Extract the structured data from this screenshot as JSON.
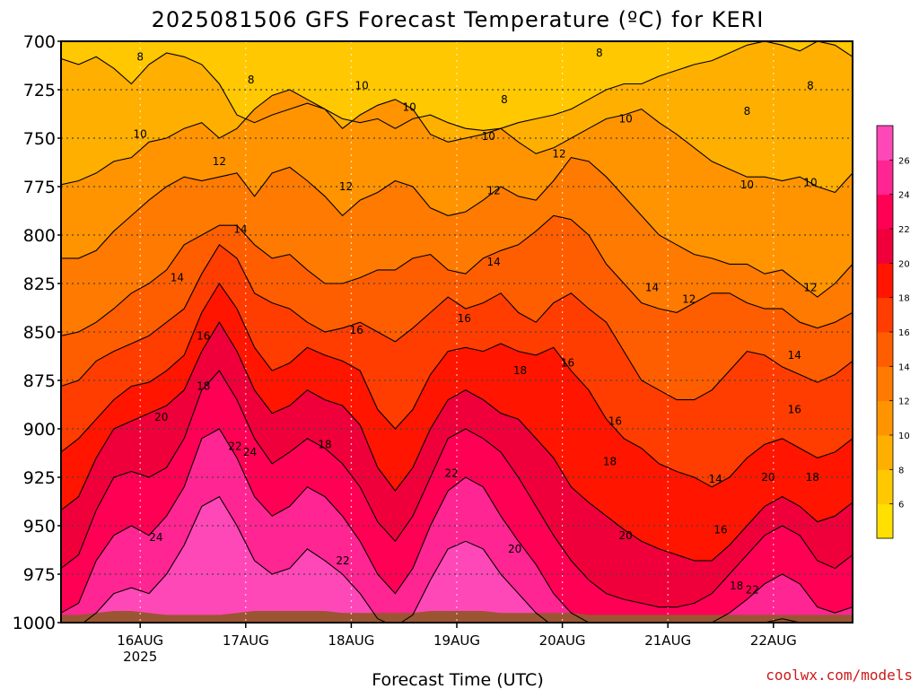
{
  "chart_data": {
    "type": "contour",
    "title": "2025081506 GFS Forecast Temperature (ºC) for KERI",
    "xlabel": "Forecast Time (UTC)",
    "credit": "coolwx.com/models",
    "x_axis": {
      "ticks": [
        {
          "label": "16AUG",
          "sublabel": "2025",
          "day": 1.0
        },
        {
          "label": "17AUG",
          "sublabel": "",
          "day": 2.0
        },
        {
          "label": "18AUG",
          "sublabel": "",
          "day": 3.0
        },
        {
          "label": "19AUG",
          "sublabel": "",
          "day": 4.0
        },
        {
          "label": "20AUG",
          "sublabel": "",
          "day": 5.0
        },
        {
          "label": "21AUG",
          "sublabel": "",
          "day": 6.0
        },
        {
          "label": "22AUG",
          "sublabel": "",
          "day": 7.0
        }
      ],
      "range_days": [
        0.25,
        7.75
      ]
    },
    "y_axis": {
      "label": "",
      "ticks": [
        "700",
        "725",
        "750",
        "775",
        "800",
        "825",
        "850",
        "875",
        "900",
        "925",
        "950",
        "975",
        "1000"
      ],
      "range_hpa": [
        700,
        1000
      ],
      "reversed": true
    },
    "grid": true,
    "colorbar": {
      "ticks": [
        "6",
        "8",
        "10",
        "12",
        "14",
        "16",
        "18",
        "20",
        "22",
        "24",
        "26"
      ],
      "levels": [
        4,
        6,
        8,
        10,
        12,
        14,
        16,
        18,
        20,
        22,
        24,
        26,
        28
      ],
      "colors": [
        "#ffe000",
        "#ffc800",
        "#ffaf00",
        "#ff9400",
        "#ff7a00",
        "#ff5e00",
        "#ff3d00",
        "#ff1500",
        "#f0003a",
        "#ff0055",
        "#ff2592",
        "#ff48b8"
      ],
      "placement": "right"
    },
    "surface_color": "#9b5533",
    "isotherms": [
      {
        "value": 8,
        "hpa": [
          709,
          712,
          708,
          714,
          722,
          712,
          706,
          708,
          712,
          722,
          738,
          742,
          738,
          735,
          732,
          735,
          740,
          742,
          740,
          745,
          740,
          738,
          742,
          745,
          746,
          745,
          742,
          740,
          738,
          735,
          730,
          725,
          722,
          722,
          718,
          715,
          712,
          710,
          706,
          702,
          700,
          702,
          705,
          700,
          702,
          708
        ]
      },
      {
        "value": 10,
        "hpa": [
          774,
          772,
          768,
          762,
          760,
          752,
          750,
          745,
          742,
          750,
          745,
          735,
          728,
          725,
          730,
          735,
          745,
          738,
          733,
          730,
          735,
          748,
          752,
          750,
          748,
          745,
          752,
          758,
          755,
          750,
          745,
          740,
          738,
          735,
          742,
          748,
          755,
          762,
          766,
          770,
          770,
          772,
          770,
          775,
          778,
          768
        ]
      },
      {
        "value": 12,
        "hpa": [
          812,
          812,
          808,
          798,
          790,
          782,
          775,
          770,
          772,
          770,
          768,
          780,
          768,
          765,
          772,
          780,
          790,
          782,
          778,
          772,
          775,
          786,
          790,
          788,
          782,
          775,
          780,
          782,
          772,
          760,
          762,
          770,
          780,
          790,
          800,
          805,
          810,
          812,
          815,
          815,
          820,
          818,
          825,
          832,
          825,
          815
        ]
      },
      {
        "value": 14,
        "hpa": [
          852,
          850,
          845,
          838,
          830,
          825,
          818,
          805,
          800,
          795,
          795,
          805,
          812,
          810,
          818,
          825,
          825,
          822,
          818,
          818,
          812,
          810,
          818,
          820,
          812,
          808,
          805,
          798,
          790,
          792,
          800,
          815,
          825,
          835,
          838,
          840,
          835,
          830,
          830,
          835,
          838,
          838,
          845,
          848,
          845,
          840
        ]
      },
      {
        "value": 16,
        "hpa": [
          878,
          875,
          865,
          860,
          856,
          852,
          845,
          838,
          820,
          805,
          812,
          830,
          835,
          838,
          845,
          850,
          848,
          845,
          850,
          855,
          848,
          840,
          832,
          838,
          835,
          830,
          840,
          845,
          835,
          830,
          838,
          845,
          860,
          875,
          880,
          885,
          885,
          880,
          870,
          860,
          862,
          868,
          872,
          876,
          872,
          865
        ]
      },
      {
        "value": 18,
        "hpa": [
          912,
          905,
          895,
          885,
          878,
          876,
          870,
          862,
          840,
          825,
          838,
          858,
          870,
          866,
          858,
          862,
          865,
          870,
          890,
          900,
          890,
          872,
          860,
          858,
          860,
          856,
          860,
          862,
          858,
          870,
          880,
          895,
          905,
          910,
          918,
          922,
          925,
          930,
          925,
          915,
          908,
          905,
          910,
          915,
          912,
          905
        ]
      },
      {
        "value": 20,
        "hpa": [
          942,
          935,
          915,
          900,
          896,
          892,
          888,
          880,
          860,
          845,
          860,
          880,
          892,
          888,
          880,
          885,
          888,
          898,
          920,
          932,
          920,
          900,
          885,
          880,
          885,
          892,
          895,
          905,
          915,
          930,
          938,
          945,
          952,
          958,
          962,
          965,
          968,
          968,
          960,
          950,
          940,
          935,
          940,
          948,
          945,
          938
        ]
      },
      {
        "value": 22,
        "hpa": [
          972,
          965,
          942,
          925,
          922,
          925,
          920,
          905,
          880,
          870,
          885,
          905,
          918,
          912,
          905,
          910,
          918,
          930,
          948,
          958,
          945,
          925,
          905,
          900,
          905,
          912,
          925,
          940,
          955,
          968,
          978,
          985,
          988,
          990,
          992,
          992,
          990,
          985,
          975,
          965,
          955,
          950,
          955,
          968,
          972,
          965
        ]
      },
      {
        "value": 24,
        "hpa": [
          995,
          990,
          968,
          955,
          950,
          955,
          945,
          930,
          905,
          900,
          915,
          935,
          945,
          940,
          930,
          935,
          945,
          958,
          975,
          985,
          972,
          950,
          932,
          925,
          930,
          945,
          958,
          970,
          985,
          995,
          1000,
          1002,
          1002,
          1002,
          1002,
          1002,
          1002,
          1000,
          995,
          988,
          980,
          975,
          980,
          992,
          995,
          992
        ]
      },
      {
        "value": 26,
        "hpa": [
          1002,
          1002,
          995,
          985,
          982,
          985,
          975,
          960,
          940,
          935,
          950,
          968,
          975,
          972,
          962,
          968,
          975,
          985,
          998,
          1002,
          996,
          978,
          962,
          958,
          962,
          975,
          985,
          995,
          1002,
          1002,
          1002,
          1002,
          1002,
          1002,
          1002,
          1002,
          1002,
          1002,
          1002,
          1002,
          1000,
          998,
          1000,
          1002,
          1002,
          1002
        ]
      }
    ],
    "contour_labels": [
      {
        "text": "8",
        "day": 1.0,
        "hpa": 708
      },
      {
        "text": "8",
        "day": 2.05,
        "hpa": 720
      },
      {
        "text": "8",
        "day": 4.45,
        "hpa": 730
      },
      {
        "text": "8",
        "day": 5.35,
        "hpa": 706
      },
      {
        "text": "8",
        "day": 6.75,
        "hpa": 736
      },
      {
        "text": "8",
        "day": 7.35,
        "hpa": 723
      },
      {
        "text": "10",
        "day": 1.0,
        "hpa": 748
      },
      {
        "text": "10",
        "day": 3.1,
        "hpa": 723
      },
      {
        "text": "10",
        "day": 3.55,
        "hpa": 734
      },
      {
        "text": "10",
        "day": 4.3,
        "hpa": 749
      },
      {
        "text": "10",
        "day": 5.6,
        "hpa": 740
      },
      {
        "text": "10",
        "day": 6.75,
        "hpa": 774
      },
      {
        "text": "10",
        "day": 7.35,
        "hpa": 773
      },
      {
        "text": "12",
        "day": 1.75,
        "hpa": 762
      },
      {
        "text": "12",
        "day": 2.95,
        "hpa": 775
      },
      {
        "text": "12",
        "day": 4.35,
        "hpa": 777
      },
      {
        "text": "12",
        "day": 4.97,
        "hpa": 758
      },
      {
        "text": "12",
        "day": 6.2,
        "hpa": 833
      },
      {
        "text": "12",
        "day": 7.35,
        "hpa": 827
      },
      {
        "text": "14",
        "day": 1.95,
        "hpa": 797
      },
      {
        "text": "14",
        "day": 1.35,
        "hpa": 822
      },
      {
        "text": "14",
        "day": 4.35,
        "hpa": 814
      },
      {
        "text": "14",
        "day": 5.85,
        "hpa": 827
      },
      {
        "text": "14",
        "day": 7.2,
        "hpa": 862
      },
      {
        "text": "14",
        "day": 6.45,
        "hpa": 926
      },
      {
        "text": "16",
        "day": 1.6,
        "hpa": 852
      },
      {
        "text": "16",
        "day": 3.05,
        "hpa": 849
      },
      {
        "text": "16",
        "day": 4.07,
        "hpa": 843
      },
      {
        "text": "16",
        "day": 5.05,
        "hpa": 866
      },
      {
        "text": "16",
        "day": 5.5,
        "hpa": 896
      },
      {
        "text": "16",
        "day": 7.2,
        "hpa": 890
      },
      {
        "text": "16",
        "day": 6.5,
        "hpa": 952
      },
      {
        "text": "18",
        "day": 1.6,
        "hpa": 878
      },
      {
        "text": "18",
        "day": 2.75,
        "hpa": 908
      },
      {
        "text": "18",
        "day": 4.6,
        "hpa": 870
      },
      {
        "text": "18",
        "day": 5.45,
        "hpa": 917
      },
      {
        "text": "18",
        "day": 6.65,
        "hpa": 981
      },
      {
        "text": "18",
        "day": 7.37,
        "hpa": 925
      },
      {
        "text": "20",
        "day": 1.2,
        "hpa": 894
      },
      {
        "text": "20",
        "day": 4.55,
        "hpa": 962
      },
      {
        "text": "20",
        "day": 5.6,
        "hpa": 955
      },
      {
        "text": "20",
        "day": 6.95,
        "hpa": 925
      },
      {
        "text": "22",
        "day": 1.9,
        "hpa": 909
      },
      {
        "text": "22",
        "day": 2.92,
        "hpa": 968
      },
      {
        "text": "22",
        "day": 3.95,
        "hpa": 923
      },
      {
        "text": "22",
        "day": 6.8,
        "hpa": 983
      },
      {
        "text": "24",
        "day": 2.04,
        "hpa": 912
      },
      {
        "text": "24",
        "day": 1.15,
        "hpa": 956
      }
    ]
  }
}
